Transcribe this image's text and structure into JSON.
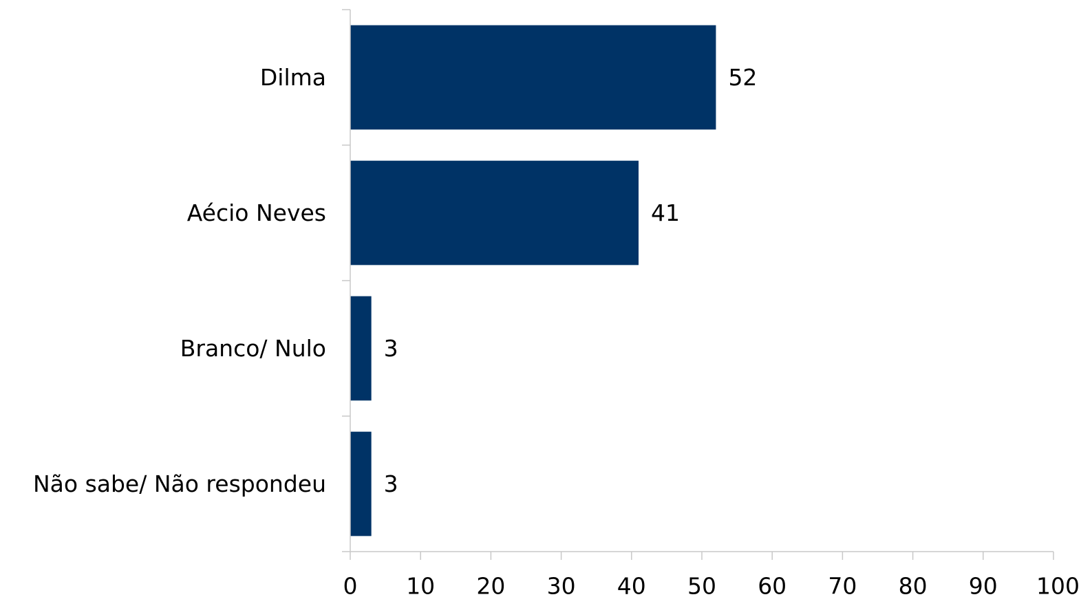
{
  "chart_data": {
    "type": "bar",
    "orientation": "horizontal",
    "categories": [
      "Dilma",
      "Aécio Neves",
      "Branco/ Nulo",
      "Não sabe/ Não respondeu"
    ],
    "values": [
      52,
      41,
      3,
      3
    ],
    "data_labels": [
      "52",
      "41",
      "3",
      "3"
    ],
    "xlim": [
      0,
      100
    ],
    "x_ticks": [
      "0",
      "10",
      "20",
      "30",
      "40",
      "50",
      "60",
      "70",
      "80",
      "90",
      "100"
    ],
    "title": "",
    "xlabel": "",
    "ylabel": "",
    "grid": false,
    "legend": "none",
    "bar_color": "#003366"
  }
}
